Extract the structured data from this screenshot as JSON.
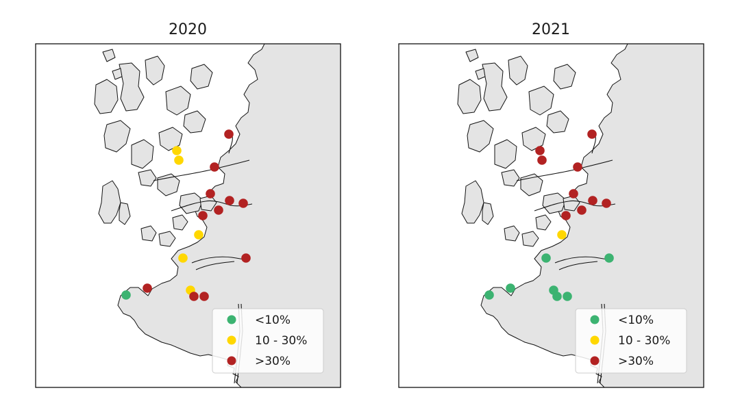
{
  "maps": [
    {
      "title": "2020",
      "points": [
        {
          "id": "p1",
          "category": "gt30"
        },
        {
          "id": "p2",
          "category": "10to30"
        },
        {
          "id": "p3",
          "category": "10to30"
        },
        {
          "id": "p4",
          "category": "gt30"
        },
        {
          "id": "p5",
          "category": "gt30"
        },
        {
          "id": "p6",
          "category": "gt30"
        },
        {
          "id": "p7",
          "category": "gt30"
        },
        {
          "id": "p8",
          "category": "gt30"
        },
        {
          "id": "p9",
          "category": "gt30"
        },
        {
          "id": "p10",
          "category": "10to30"
        },
        {
          "id": "p11",
          "category": "10to30"
        },
        {
          "id": "p12",
          "category": "gt30"
        },
        {
          "id": "p13",
          "category": "lt10"
        },
        {
          "id": "p14",
          "category": "gt30"
        },
        {
          "id": "p15",
          "category": "10to30"
        },
        {
          "id": "p16",
          "category": "gt30"
        },
        {
          "id": "p17",
          "category": "gt30"
        }
      ]
    },
    {
      "title": "2021",
      "points": [
        {
          "id": "p1",
          "category": "gt30"
        },
        {
          "id": "p2",
          "category": "gt30"
        },
        {
          "id": "p3",
          "category": "gt30"
        },
        {
          "id": "p4",
          "category": "gt30"
        },
        {
          "id": "p5",
          "category": "gt30"
        },
        {
          "id": "p6",
          "category": "gt30"
        },
        {
          "id": "p7",
          "category": "gt30"
        },
        {
          "id": "p8",
          "category": "gt30"
        },
        {
          "id": "p9",
          "category": "gt30"
        },
        {
          "id": "p10",
          "category": "10to30"
        },
        {
          "id": "p11",
          "category": "lt10"
        },
        {
          "id": "p12",
          "category": "lt10"
        },
        {
          "id": "p13",
          "category": "lt10"
        },
        {
          "id": "p14",
          "category": "lt10"
        },
        {
          "id": "p15",
          "category": "lt10"
        },
        {
          "id": "p16",
          "category": "lt10"
        },
        {
          "id": "p17",
          "category": "lt10"
        }
      ]
    }
  ],
  "legend": [
    {
      "key": "lt10",
      "label": "<10%",
      "color": "#3cb371"
    },
    {
      "key": "10to30",
      "label": "10 - 30%",
      "color": "#ffd700"
    },
    {
      "key": "gt30",
      "label": ">30%",
      "color": "#b22222"
    }
  ],
  "colors": {
    "land": "#e4e4e4",
    "sea": "#ffffff",
    "coast": "#111111"
  }
}
